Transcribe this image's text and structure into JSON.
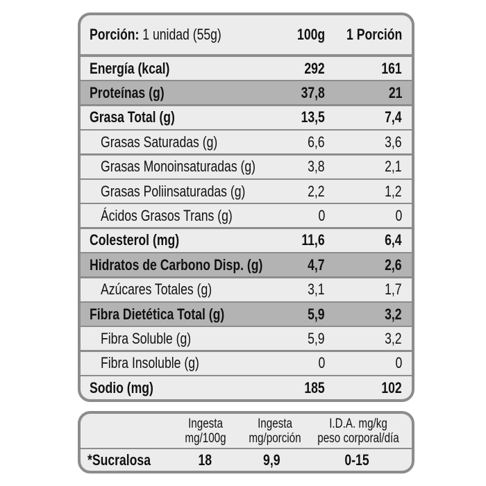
{
  "header": {
    "portion_label": "Porción:",
    "portion_value": "1 unidad (55g)",
    "col_100g": "100g",
    "col_portion": "1 Porción"
  },
  "rows": [
    {
      "label": "Energía (kcal)",
      "v100": "292",
      "vpor": "161",
      "style": "bold"
    },
    {
      "label": "Proteínas (g)",
      "v100": "37,8",
      "vpor": "21",
      "style": "bold-shaded"
    },
    {
      "label": "Grasa Total (g)",
      "v100": "13,5",
      "vpor": "7,4",
      "style": "bold"
    },
    {
      "label": "Grasas Saturadas (g)",
      "v100": "6,6",
      "vpor": "3,6",
      "style": "sub"
    },
    {
      "label": "Grasas Monoinsaturadas (g)",
      "v100": "3,8",
      "vpor": "2,1",
      "style": "sub"
    },
    {
      "label": "Grasas Poliinsaturadas (g)",
      "v100": "2,2",
      "vpor": "1,2",
      "style": "sub"
    },
    {
      "label": "Ácidos Grasos Trans (g)",
      "v100": "0",
      "vpor": "0",
      "style": "sub"
    },
    {
      "label": "Colesterol (mg)",
      "v100": "11,6",
      "vpor": "6,4",
      "style": "bold"
    },
    {
      "label": "Hidratos de Carbono Disp. (g)",
      "v100": "4,7",
      "vpor": "2,6",
      "style": "bold-shaded"
    },
    {
      "label": "Azúcares Totales (g)",
      "v100": "3,1",
      "vpor": "1,7",
      "style": "sub"
    },
    {
      "label": "Fibra Dietética Total (g)",
      "v100": "5,9",
      "vpor": "3,2",
      "style": "bold-shaded"
    },
    {
      "label": "Fibra Soluble (g)",
      "v100": "5,9",
      "vpor": "3,2",
      "style": "sub"
    },
    {
      "label": "Fibra Insoluble (g)",
      "v100": "0",
      "vpor": "0",
      "style": "sub"
    },
    {
      "label": "Sodio (mg)",
      "v100": "185",
      "vpor": "102",
      "style": "bold"
    }
  ],
  "sweetener": {
    "headers": [
      {
        "line1": "Ingesta",
        "line2": "mg/100g"
      },
      {
        "line1": "Ingesta",
        "line2": "mg/porción"
      },
      {
        "line1": "I.D.A. mg/kg",
        "line2": "peso corporal/día"
      }
    ],
    "row": {
      "label": "*Sucralosa",
      "values": [
        "18",
        "9,9",
        "0-15"
      ]
    }
  }
}
